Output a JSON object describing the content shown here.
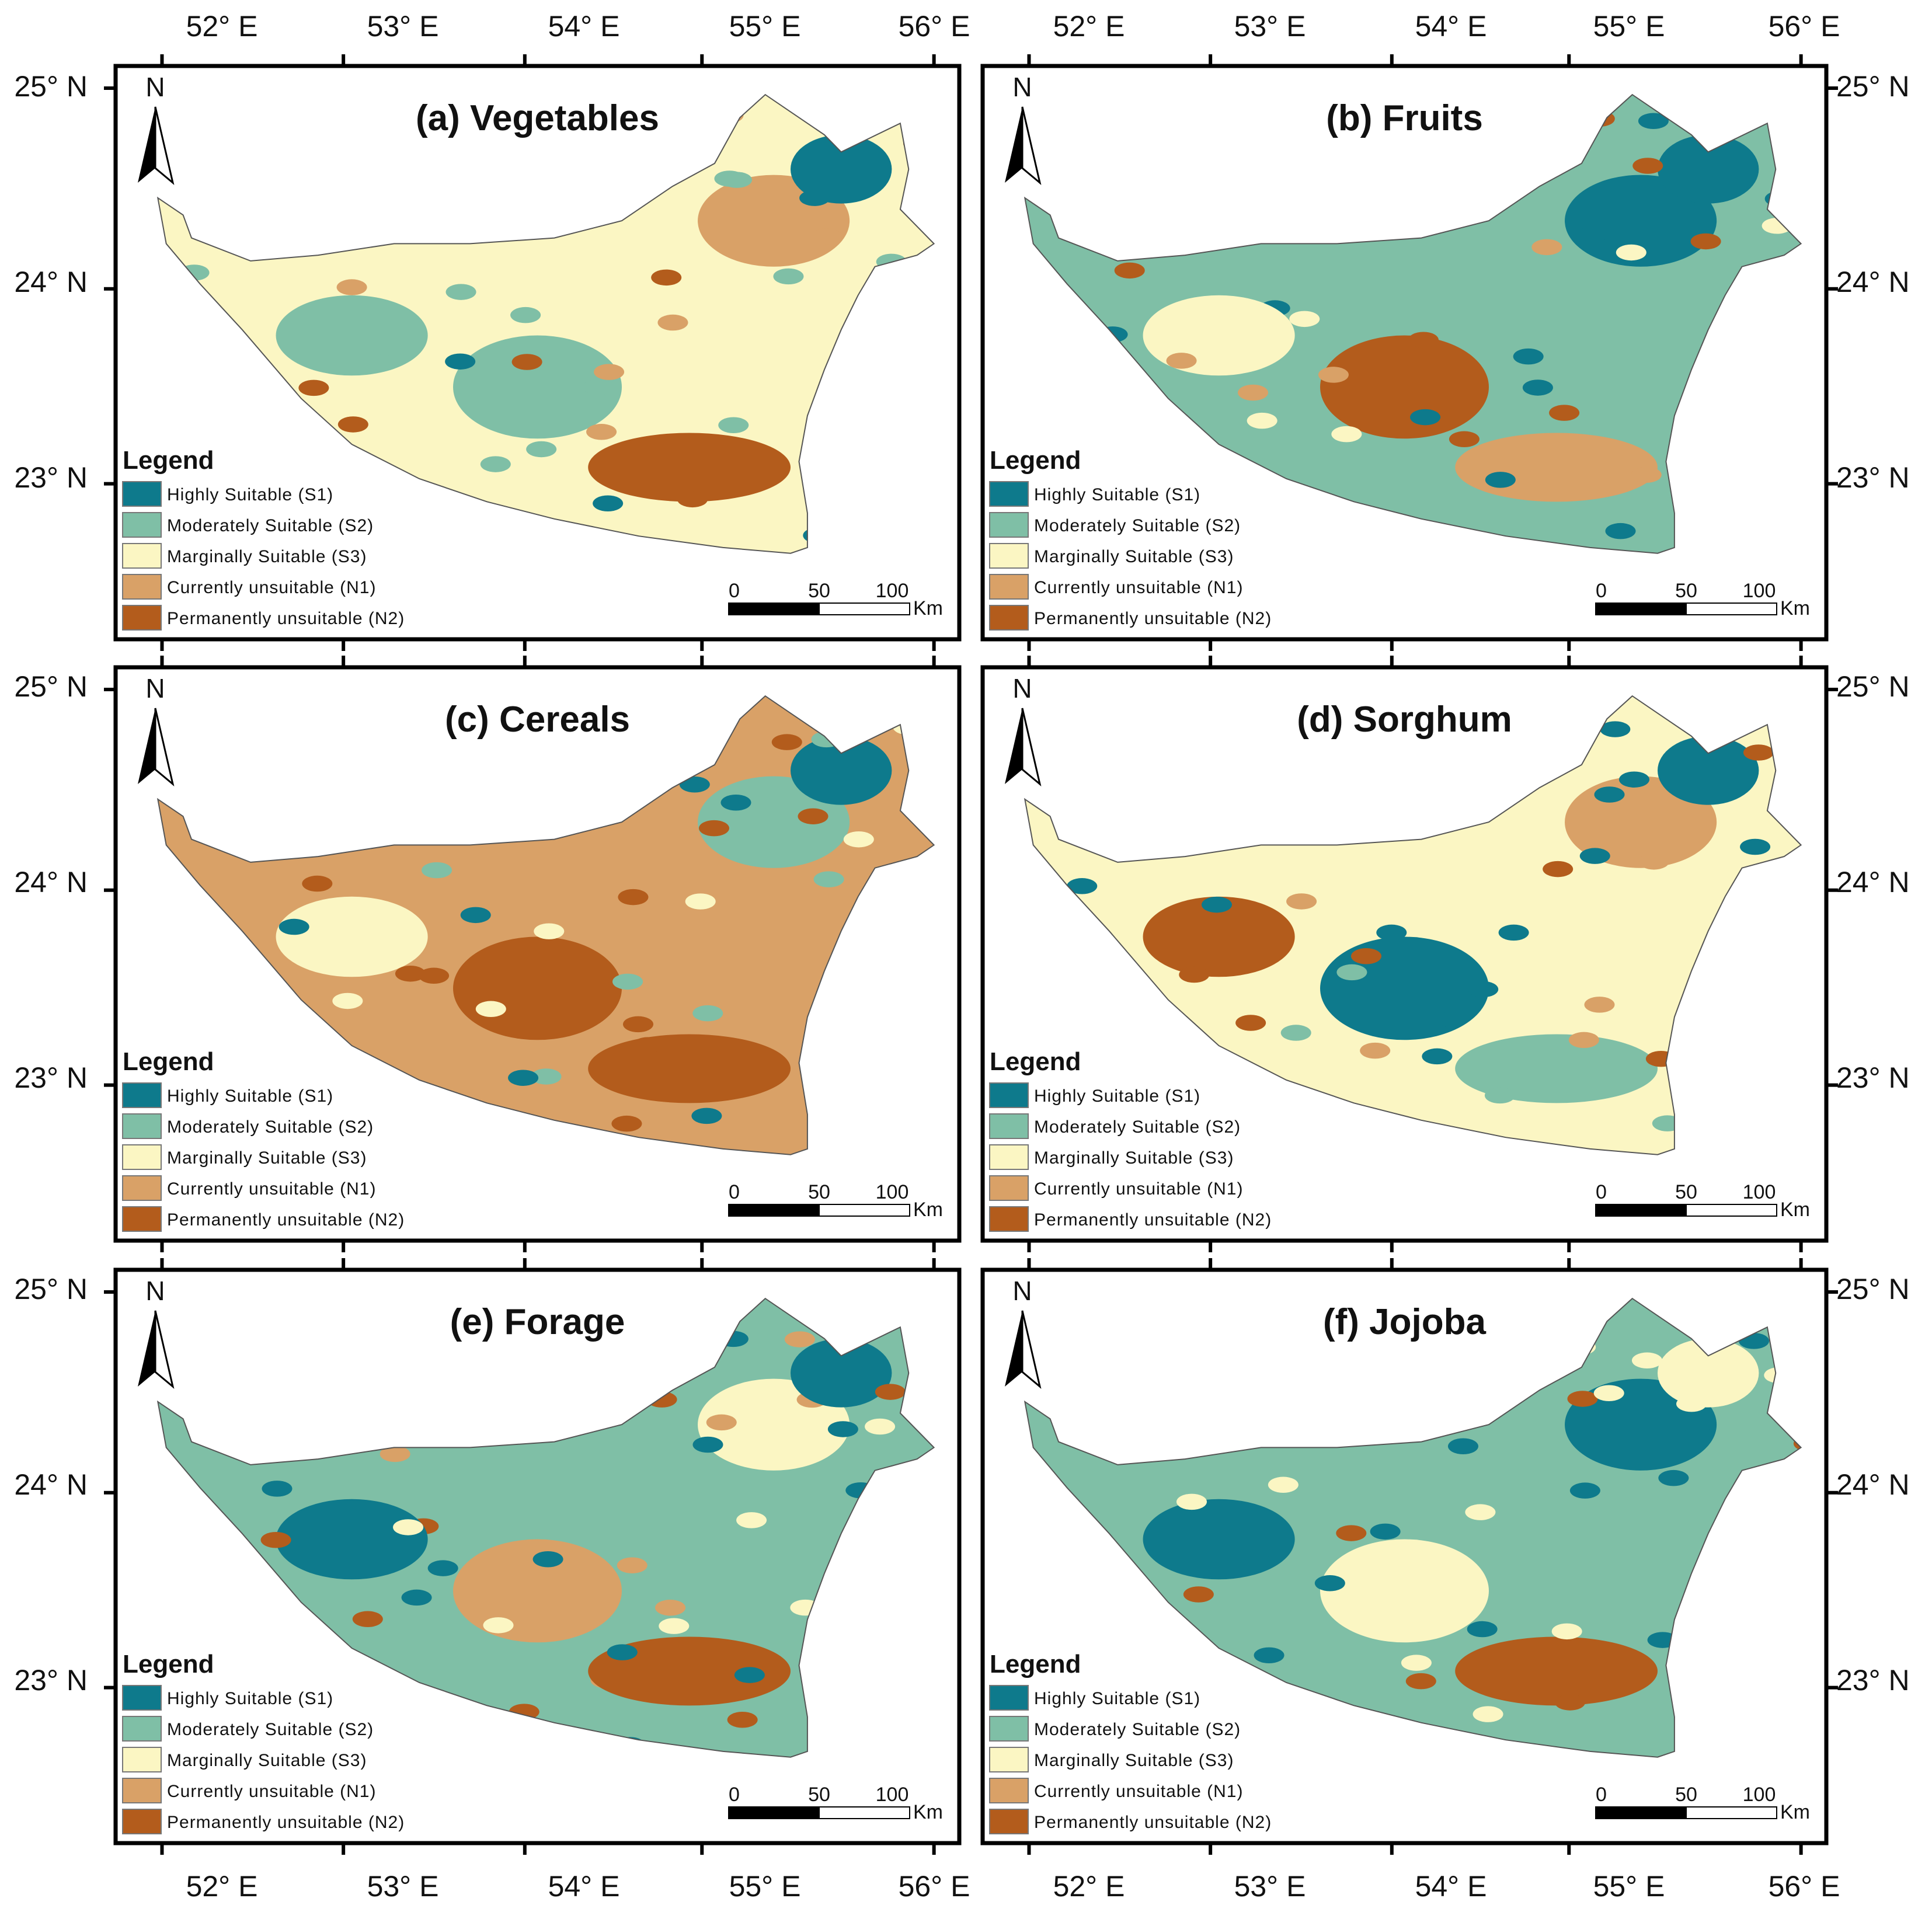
{
  "colors": {
    "S1": "#0e7a8c",
    "S2": "#7fbfa6",
    "S3": "#fbf6c3",
    "N1": "#d9a167",
    "N2": "#b35c1c"
  },
  "legend": {
    "title": "Legend",
    "items": [
      {
        "key": "S1",
        "label": "Highly Suitable (S1)"
      },
      {
        "key": "S2",
        "label": "Moderately Suitable (S2)"
      },
      {
        "key": "S3",
        "label": "Marginally Suitable (S3)"
      },
      {
        "key": "N1",
        "label": "Currently unsuitable (N1)"
      },
      {
        "key": "N2",
        "label": "Permanently unsuitable (N2)"
      }
    ]
  },
  "north_arrow_label": "N",
  "scale_bar": {
    "labels": [
      "0",
      "50",
      "100"
    ],
    "unit": "Km"
  },
  "longitude_labels": [
    "52° E",
    "53° E",
    "54° E",
    "55° E",
    "56° E"
  ],
  "latitude_labels": [
    "25° N",
    "24° N",
    "23° N"
  ],
  "panels": [
    {
      "title": "(a) Vegetables",
      "base": "S3",
      "mix": [
        "S2",
        "N1",
        "S2",
        "N2",
        "S1"
      ]
    },
    {
      "title": "(b) Fruits",
      "base": "S2",
      "mix": [
        "N2",
        "S1",
        "S3",
        "N1",
        "S1"
      ]
    },
    {
      "title": "(c) Cereals",
      "base": "N1",
      "mix": [
        "N2",
        "S2",
        "S3",
        "N2",
        "S1"
      ]
    },
    {
      "title": "(d) Sorghum",
      "base": "S3",
      "mix": [
        "S1",
        "N1",
        "N2",
        "S2",
        "S1"
      ]
    },
    {
      "title": "(e) Forage",
      "base": "S2",
      "mix": [
        "N1",
        "S3",
        "S1",
        "N2",
        "S1"
      ]
    },
    {
      "title": "(f) Jojoba",
      "base": "S2",
      "mix": [
        "S3",
        "S1",
        "S1",
        "N2",
        "S3"
      ]
    }
  ]
}
